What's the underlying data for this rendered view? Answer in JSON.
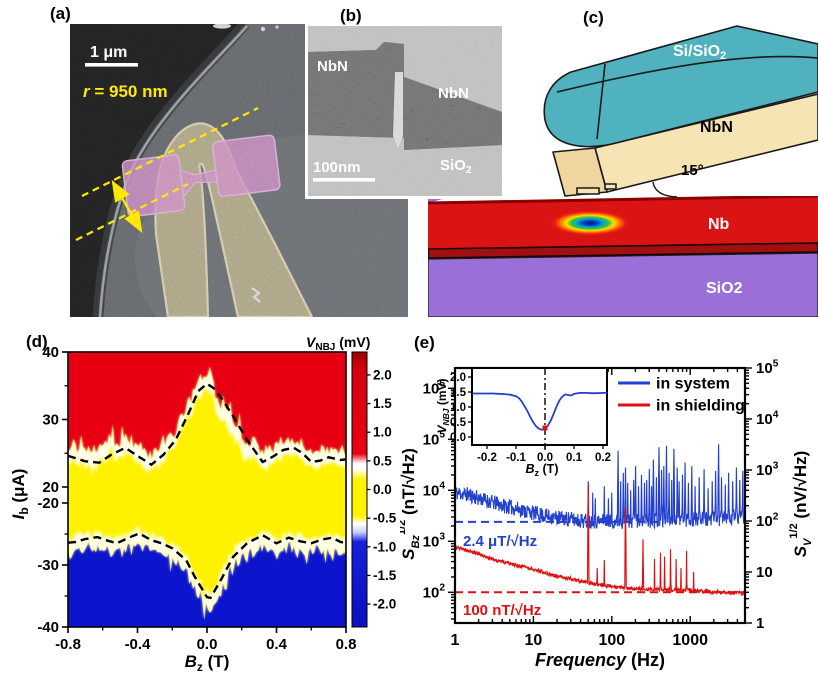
{
  "panel_labels": {
    "a": "(a)",
    "b": "(b)",
    "c": "(c)",
    "d": "(d)",
    "e": "(e)"
  },
  "panel_a": {
    "scale_bar": "1 μm",
    "radius_symbol": "r",
    "radius_rest": " = 950 nm"
  },
  "panel_b": {
    "nbn_left": "NbN",
    "nbn_right": "NbN",
    "sio2_main": "SiO",
    "sio2_sub": "2",
    "scale_bar": "100nm"
  },
  "panel_c": {
    "si_sio2_main": "Si/SiO",
    "si_sio2_sub": "2",
    "nbn": "NbN",
    "angle": "15°",
    "nb": "Nb",
    "sio2": "SiO2",
    "teal_color": "#4FB2BE",
    "cream_color": "#F7E4B4",
    "nb_red_color": "#DA1414",
    "sio2_purple_color": "#9A6FD8"
  },
  "chart_data": [
    {
      "id": "d",
      "type": "heatmap",
      "xlabel_main": "B",
      "xlabel_sub": "z",
      "xlabel_rest": " (T)",
      "ylabel_main": "I",
      "ylabel_sub": "b",
      "ylabel_rest": " (μA)",
      "colorbar_main": "V",
      "colorbar_sub": "NBJ",
      "colorbar_rest": " (mV)",
      "xlim": [
        -0.8,
        0.8
      ],
      "xticks": [
        "-0.8",
        "-0.4",
        "0.0",
        "0.4",
        "0.8"
      ],
      "xticks_minor": [
        -0.6,
        -0.2,
        0.2,
        0.6
      ],
      "yticks": [
        "40",
        "30",
        "20",
        "-20",
        "-30",
        "-40"
      ],
      "yticks_minor": [
        35,
        25,
        -25,
        -35
      ],
      "axis_break_between": [
        20,
        -20
      ],
      "ylim_top": [
        20,
        40
      ],
      "ylim_bottom": [
        -40,
        -20
      ],
      "colorbar_ticks": [
        "2.0",
        "1.5",
        "1.0",
        "0.5",
        "0.0",
        "-0.5",
        "-1.0",
        "-1.5",
        "-2.0"
      ],
      "colorbar_range": [
        -2.4,
        2.4
      ],
      "colors": {
        "positive_v": "#E80012",
        "zero_v": "#FFF200",
        "negative_v": "#0C14CC"
      },
      "upper_critical_current": {
        "B": [
          -0.8,
          -0.76,
          -0.7,
          -0.62,
          -0.55,
          -0.47,
          -0.4,
          -0.32,
          -0.25,
          -0.18,
          -0.11,
          -0.05,
          0.0,
          0.04,
          0.08,
          0.15,
          0.23,
          0.32,
          0.38,
          0.44,
          0.5,
          0.55,
          0.6,
          0.65,
          0.7,
          0.77,
          0.8
        ],
        "I_uA": [
          24.6,
          24.3,
          23.8,
          23.6,
          24.8,
          25.8,
          24.6,
          23.3,
          24.8,
          27.0,
          30.7,
          34.2,
          35.3,
          34.6,
          33.3,
          30.5,
          27.0,
          23.7,
          24.5,
          25.5,
          25.8,
          25.0,
          23.7,
          23.9,
          24.4,
          24.0,
          24.1
        ]
      },
      "lower_critical_current": {
        "B": [
          -0.8,
          -0.76,
          -0.7,
          -0.63,
          -0.58,
          -0.52,
          -0.45,
          -0.39,
          -0.32,
          -0.26,
          -0.2,
          -0.12,
          -0.07,
          0.0,
          0.02,
          0.08,
          0.15,
          0.23,
          0.32,
          0.4,
          0.47,
          0.54,
          0.6,
          0.66,
          0.72,
          0.77,
          0.8
        ],
        "I_uA": [
          -26.4,
          -26.3,
          -25.8,
          -25.5,
          -26.0,
          -26.5,
          -25.6,
          -24.9,
          -26.0,
          -26.5,
          -27.3,
          -29.2,
          -31.9,
          -35.2,
          -35.3,
          -32.4,
          -28.7,
          -26.5,
          -25.2,
          -26.5,
          -25.6,
          -26.2,
          -26.5,
          -25.9,
          -25.6,
          -26.3,
          -26.4
        ]
      }
    },
    {
      "id": "e",
      "type": "line",
      "xscale": "log",
      "yscale": "log",
      "xlabel_main": "Frequency",
      "xlabel_rest": " (Hz)",
      "ylabel_left": {
        "main": "S",
        "sub": "Bz",
        "sup": "1/2",
        "rest": " (nT/√Hz)"
      },
      "ylabel_right": {
        "main": "S",
        "sub": "V",
        "sup": "1/2",
        "rest": " (nV/√Hz)"
      },
      "xlim": [
        1,
        5000
      ],
      "xticks": [
        "1",
        "10",
        "100",
        "1000"
      ],
      "ylim_right": [
        1,
        100000
      ],
      "yticks_left": [
        "10^2",
        "10^3",
        "10^4",
        "10^5",
        "10^6"
      ],
      "yticks_right": [
        "1",
        "10",
        "10^2",
        "10^3",
        "10^4",
        "10^5"
      ],
      "left_right_ratio": 25,
      "series": [
        {
          "name": "in system",
          "color": "#2441CE",
          "noise_frac": 0.3,
          "baseline_f": [
            1,
            1.5,
            2,
            3,
            4,
            6,
            8,
            10,
            15,
            20,
            30,
            50,
            100,
            200,
            400,
            1000,
            2000,
            5000
          ],
          "baseline_nT": [
            9000,
            8200,
            7000,
            5800,
            5100,
            4400,
            3900,
            3600,
            3100,
            2900,
            2700,
            2500,
            2450,
            2500,
            2600,
            2700,
            2750,
            3000
          ],
          "spikes_f": [
            50,
            57,
            62,
            80,
            90,
            100,
            120,
            130,
            140,
            150,
            160,
            175,
            190,
            200,
            220,
            240,
            260,
            280,
            300,
            320,
            340,
            370,
            400,
            430,
            460,
            500,
            540,
            580,
            620,
            680,
            720,
            800,
            860,
            950,
            1050,
            1150,
            1300,
            1500,
            1700,
            1900,
            2100,
            2300,
            2500,
            2800,
            3100,
            3500,
            3900,
            4300,
            4700
          ],
          "spikes_nT": [
            15000,
            9000,
            7000,
            12000,
            7000,
            9000,
            60000,
            15000,
            22000,
            28000,
            14000,
            10000,
            16000,
            30000,
            12000,
            20000,
            14000,
            16000,
            26000,
            12000,
            40000,
            18000,
            70000,
            25000,
            30000,
            75000,
            22000,
            16000,
            65000,
            28000,
            15000,
            20000,
            35000,
            14000,
            30000,
            12000,
            18000,
            26000,
            11000,
            15000,
            24000,
            80000,
            18000,
            13000,
            22000,
            15000,
            28000,
            16000,
            24000
          ]
        },
        {
          "name": "in shielding",
          "color": "#E01010",
          "noise_frac": 0.07,
          "baseline_f": [
            1,
            1.5,
            2,
            3,
            4,
            6,
            8,
            10,
            15,
            20,
            30,
            40,
            60,
            80,
            100,
            150,
            300,
            600,
            1000,
            2000,
            5000
          ],
          "baseline_nT": [
            780,
            640,
            560,
            450,
            395,
            340,
            310,
            285,
            235,
            205,
            185,
            165,
            145,
            135,
            128,
            122,
            116,
            112,
            108,
            102,
            95
          ],
          "spikes_f": [
            50,
            65,
            80,
            150,
            250,
            350,
            420,
            470,
            560,
            660,
            760,
            900,
            1100
          ],
          "spikes_nT": [
            13500,
            300,
            430,
            5000,
            1100,
            450,
            600,
            500,
            700,
            450,
            300,
            650,
            250
          ]
        }
      ],
      "annotations": [
        {
          "text": "2.4 μT/√Hz",
          "value_nT": 2400,
          "color": "#2441CE"
        },
        {
          "text": "100 nT/√Hz",
          "value_nT": 100,
          "color": "#E01010"
        }
      ],
      "inset": {
        "xlabel_main": "B",
        "xlabel_sub": "z",
        "xlabel_rest": " (T)",
        "ylabel_main": "V",
        "ylabel_sub": "NBJ",
        "ylabel_rest": " (mV)",
        "xlim": [
          -0.25,
          0.215
        ],
        "ylim": [
          0,
          2.0
        ],
        "xticks": [
          "-0.2",
          "-0.1",
          "0.0",
          "0.1",
          "0.2"
        ],
        "yticks": [
          "0.0",
          "0.5",
          "1.0",
          "1.5",
          "2.0"
        ],
        "curve_color": "#2441CE",
        "curve_B": [
          -0.25,
          -0.22,
          -0.2,
          -0.18,
          -0.16,
          -0.14,
          -0.12,
          -0.1,
          -0.09,
          -0.08,
          -0.07,
          -0.06,
          -0.05,
          -0.04,
          -0.03,
          -0.02,
          -0.01,
          0.0,
          0.01,
          0.02,
          0.03,
          0.04,
          0.05,
          0.06,
          0.07,
          0.08,
          0.09,
          0.1,
          0.12,
          0.14,
          0.16,
          0.18,
          0.2,
          0.215
        ],
        "curve_mV": [
          1.45,
          1.45,
          1.45,
          1.45,
          1.44,
          1.43,
          1.41,
          1.36,
          1.3,
          1.18,
          1.02,
          0.85,
          0.65,
          0.48,
          0.35,
          0.27,
          0.24,
          0.28,
          0.38,
          0.55,
          0.78,
          1.02,
          1.22,
          1.35,
          1.42,
          1.4,
          1.38,
          1.44,
          1.47,
          1.47,
          1.46,
          1.46,
          1.47,
          1.47
        ],
        "marker": {
          "B": 0.0,
          "mV": 0.3,
          "color": "#E01010"
        },
        "vline_B": 0.0
      }
    }
  ]
}
